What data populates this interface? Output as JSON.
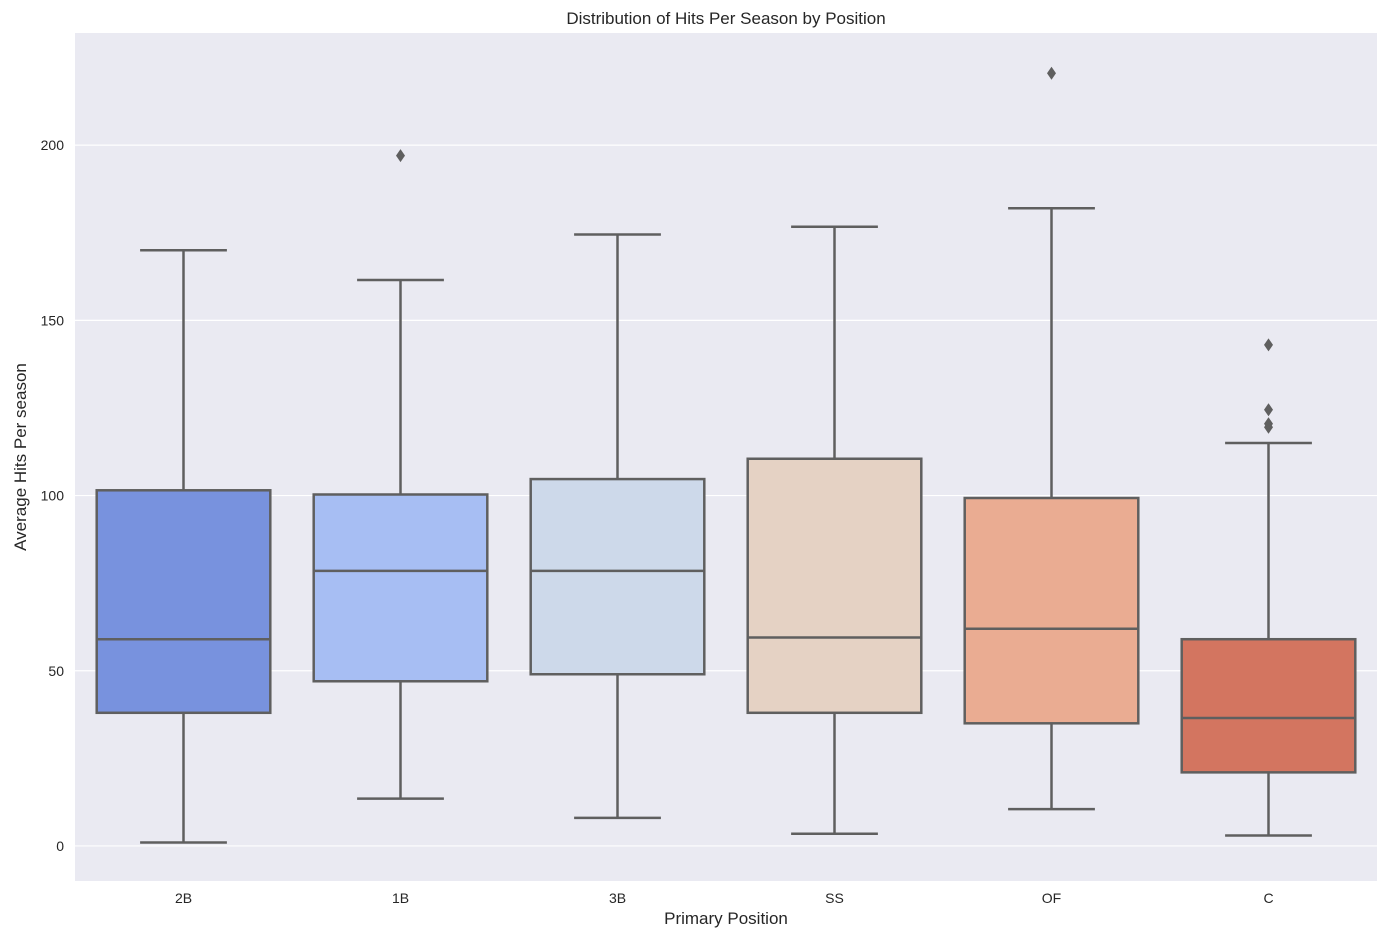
{
  "chart_data": {
    "type": "box",
    "title": "Distribution of Hits Per Season by Position",
    "xlabel": "Primary Position",
    "ylabel": "Average Hits Per season",
    "ylim": [
      -10,
      232
    ],
    "yticks": [
      0,
      50,
      100,
      150,
      200
    ],
    "grid": true,
    "categories": [
      "2B",
      "1B",
      "3B",
      "SS",
      "OF",
      "C"
    ],
    "boxes": [
      {
        "category": "2B",
        "whisker_low": 1,
        "q1": 38,
        "median": 59,
        "q3": 101.5,
        "whisker_high": 170,
        "outliers": [],
        "color": "#7892de"
      },
      {
        "category": "1B",
        "whisker_low": 13.5,
        "q1": 47,
        "median": 78.5,
        "q3": 100.3,
        "whisker_high": 161.5,
        "outliers": [
          197
        ],
        "color": "#a7bef3"
      },
      {
        "category": "3B",
        "whisker_low": 8,
        "q1": 49,
        "median": 78.5,
        "q3": 104.7,
        "whisker_high": 174.5,
        "outliers": [],
        "color": "#cdd9ea"
      },
      {
        "category": "SS",
        "whisker_low": 3.5,
        "q1": 38,
        "median": 59.5,
        "q3": 110.5,
        "whisker_high": 176.7,
        "outliers": [],
        "color": "#e5d2c4"
      },
      {
        "category": "OF",
        "whisker_low": 10.5,
        "q1": 35,
        "median": 62,
        "q3": 99.3,
        "whisker_high": 182,
        "outliers": [
          220.5
        ],
        "color": "#eaac92"
      },
      {
        "category": "C",
        "whisker_low": 3,
        "q1": 21,
        "median": 36.5,
        "q3": 59,
        "whisker_high": 115,
        "outliers": [
          119.5,
          120.5,
          124.5,
          143
        ],
        "color": "#d37560"
      }
    ],
    "colors": {
      "plot_background": "#eaeaf2",
      "grid": "#ffffff",
      "box_edge": "#5f5f5f"
    }
  }
}
